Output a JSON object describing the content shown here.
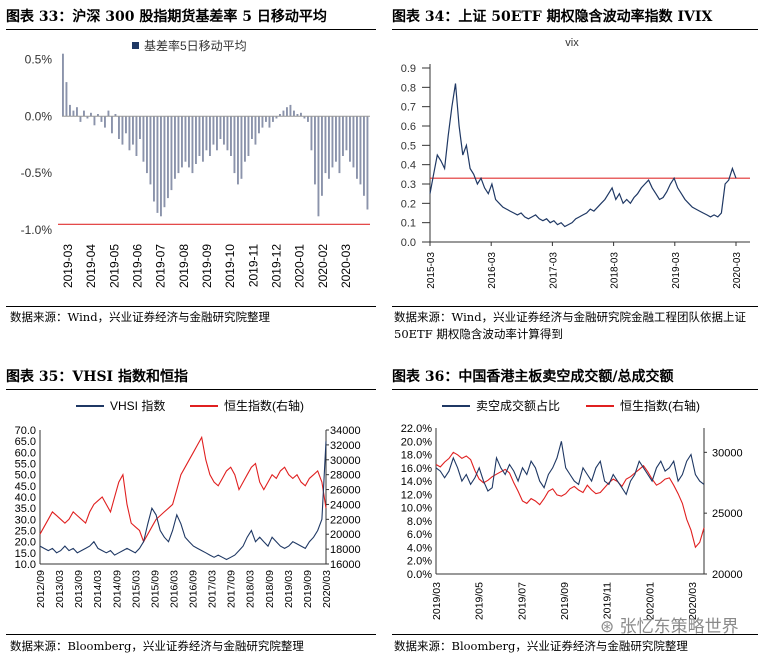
{
  "panels": [
    {
      "title": "图表 33：沪深 300 股指期货基差率 5 日移动平均",
      "source": "数据来源：Wind，兴业证券经济与金融研究院整理"
    },
    {
      "title": "图表 34：上证 50ETF 期权隐含波动率指数 IVIX",
      "source": "数据来源：Wind，兴业证券经济与金融研究院金融工程团队依据上证 50ETF 期权隐含波动率计算得到"
    },
    {
      "title": "图表 35：VHSI 指数和恒指",
      "source": "数据来源：Bloomberg，兴业证券经济与金融研究院整理"
    },
    {
      "title": "图表 36：中国香港主板卖空成交额/总成交额",
      "source": "数据来源：Bloomberg，兴业证券经济与金融研究院整理"
    }
  ],
  "watermark": "张忆东策略世界",
  "chart_data": [
    {
      "type": "bar",
      "legend": [
        "基差率5日移动平均"
      ],
      "yticks": [
        "0.5%",
        "0.0%",
        "-0.5%",
        "-1.0%"
      ],
      "ylim": [
        -1.0,
        0.6
      ],
      "xticks": [
        "2019-03",
        "2019-04",
        "2019-05",
        "2019-06",
        "2019-07",
        "2019-08",
        "2019-09",
        "2019-10",
        "2019-11",
        "2019-12",
        "2020-01",
        "2020-02",
        "2020-03"
      ],
      "reference_line": -0.95,
      "colors": {
        "bar": "#1f3864",
        "reference": "#e03030"
      },
      "series": [
        {
          "values": [
            0.55,
            0.3,
            0.1,
            0.05,
            0.08,
            -0.05,
            0.05,
            -0.02,
            0.03,
            -0.08,
            0.02,
            -0.05,
            -0.1,
            0.05,
            -0.15,
            0.02,
            -0.2,
            -0.25,
            -0.15,
            -0.3,
            -0.25,
            -0.35,
            -0.2,
            -0.4,
            -0.5,
            -0.6,
            -0.75,
            -0.85,
            -0.88,
            -0.8,
            -0.72,
            -0.65,
            -0.55,
            -0.5,
            -0.45,
            -0.4,
            -0.45,
            -0.5,
            -0.42,
            -0.35,
            -0.4,
            -0.3,
            -0.35,
            -0.25,
            -0.3,
            -0.2,
            -0.25,
            -0.3,
            -0.35,
            -0.5,
            -0.6,
            -0.55,
            -0.4,
            -0.35,
            -0.2,
            -0.25,
            -0.15,
            -0.1,
            -0.05,
            -0.1,
            -0.05,
            -0.02,
            0.02,
            0.05,
            0.08,
            0.1,
            0.05,
            0.02,
            0.03,
            -0.02,
            -0.05,
            -0.3,
            -0.6,
            -0.88,
            -0.7,
            -0.5,
            -0.55,
            -0.45,
            -0.4,
            -0.5,
            -0.35,
            -0.3,
            -0.4,
            -0.45,
            -0.55,
            -0.6,
            -0.7,
            -0.82
          ]
        }
      ]
    },
    {
      "type": "line",
      "title": "vix",
      "yticks": [
        "0.9",
        "0.8",
        "0.7",
        "0.6",
        "0.5",
        "0.4",
        "0.3",
        "0.2",
        "0.1",
        "0.0"
      ],
      "ylim": [
        0,
        0.9
      ],
      "xticks": [
        "2015-03",
        "2016-03",
        "2017-03",
        "2018-03",
        "2019-03",
        "2020-03"
      ],
      "reference_line": 0.33,
      "colors": {
        "line": "#1f3864",
        "reference": "#e03030"
      },
      "series": [
        {
          "values": [
            0.25,
            0.35,
            0.45,
            0.42,
            0.38,
            0.55,
            0.7,
            0.82,
            0.6,
            0.45,
            0.5,
            0.38,
            0.35,
            0.3,
            0.33,
            0.28,
            0.25,
            0.3,
            0.22,
            0.2,
            0.18,
            0.17,
            0.16,
            0.15,
            0.14,
            0.15,
            0.13,
            0.12,
            0.13,
            0.14,
            0.12,
            0.11,
            0.12,
            0.1,
            0.11,
            0.09,
            0.1,
            0.08,
            0.09,
            0.1,
            0.12,
            0.13,
            0.14,
            0.15,
            0.17,
            0.16,
            0.18,
            0.2,
            0.22,
            0.25,
            0.28,
            0.22,
            0.25,
            0.2,
            0.22,
            0.2,
            0.23,
            0.25,
            0.28,
            0.3,
            0.32,
            0.28,
            0.25,
            0.22,
            0.23,
            0.26,
            0.3,
            0.33,
            0.28,
            0.25,
            0.22,
            0.2,
            0.18,
            0.17,
            0.16,
            0.15,
            0.14,
            0.13,
            0.14,
            0.13,
            0.15,
            0.3,
            0.32,
            0.38,
            0.33
          ]
        }
      ]
    },
    {
      "type": "line",
      "legend": [
        "VHSI 指数",
        "恒生指数(右轴)"
      ],
      "yticks_left": [
        "70.0",
        "65.0",
        "60.0",
        "55.0",
        "50.0",
        "45.0",
        "40.0",
        "35.0",
        "30.0",
        "25.0",
        "20.0",
        "15.0",
        "10.0"
      ],
      "yticks_right": [
        "34000",
        "32000",
        "30000",
        "28000",
        "26000",
        "24000",
        "22000",
        "20000",
        "18000",
        "16000"
      ],
      "ylim_left": [
        10,
        70
      ],
      "ylim_right": [
        16000,
        34000
      ],
      "xticks": [
        "2012/09",
        "2013/03",
        "2013/09",
        "2014/03",
        "2014/09",
        "2015/03",
        "2015/09",
        "2016/03",
        "2016/09",
        "2017/03",
        "2017/09",
        "2018/03",
        "2018/09",
        "2019/03",
        "2019/09",
        "2020/03"
      ],
      "colors": {
        "VHSI": "#1f3864",
        "HSI": "#e02020"
      },
      "series": [
        {
          "name": "VHSI 指数",
          "values": [
            18,
            17,
            16,
            17,
            15,
            16,
            18,
            16,
            17,
            15,
            16,
            17,
            18,
            20,
            17,
            16,
            15,
            16,
            14,
            15,
            16,
            17,
            16,
            15,
            17,
            20,
            28,
            35,
            32,
            25,
            22,
            20,
            25,
            32,
            28,
            22,
            20,
            18,
            17,
            16,
            15,
            14,
            13,
            14,
            13,
            12,
            13,
            14,
            16,
            18,
            22,
            25,
            20,
            22,
            20,
            18,
            22,
            20,
            18,
            17,
            18,
            20,
            19,
            18,
            17,
            20,
            22,
            25,
            30,
            65
          ]
        },
        {
          "name": "恒生指数(右轴)",
          "values": [
            20000,
            21000,
            22000,
            23000,
            22500,
            22000,
            21500,
            22000,
            23000,
            22500,
            22000,
            21500,
            23000,
            24000,
            24500,
            25000,
            24000,
            23000,
            25000,
            27000,
            28000,
            24000,
            21500,
            21000,
            20500,
            19000,
            20000,
            21000,
            22000,
            22500,
            23000,
            23500,
            24000,
            26000,
            28000,
            29000,
            30000,
            31000,
            32000,
            33000,
            30000,
            28000,
            27000,
            26500,
            27500,
            28500,
            29000,
            28000,
            26000,
            27000,
            28000,
            29000,
            29500,
            27000,
            26000,
            27000,
            28000,
            27500,
            28500,
            29000,
            28000,
            27500,
            28000,
            27000,
            26500,
            27500,
            28000,
            28500,
            27000,
            23500
          ]
        }
      ]
    },
    {
      "type": "line",
      "legend": [
        "卖空成交额占比",
        "恒生指数(右轴)"
      ],
      "yticks_left": [
        "22.0%",
        "20.0%",
        "18.0%",
        "16.0%",
        "14.0%",
        "12.0%",
        "10.0%",
        "8.0%",
        "6.0%",
        "4.0%",
        "2.0%",
        "0.0%"
      ],
      "yticks_right": [
        "30000",
        "25000",
        "20000"
      ],
      "ylim_left": [
        0,
        22
      ],
      "ylim_right": [
        20000,
        32000
      ],
      "xticks": [
        "2019/03",
        "2019/05",
        "2019/07",
        "2019/09",
        "2019/11",
        "2020/01",
        "2020/03"
      ],
      "colors": {
        "short": "#1f3864",
        "HSI": "#e02020"
      },
      "series": [
        {
          "name": "卖空成交额占比",
          "values": [
            16,
            15.5,
            14.5,
            15.5,
            17.5,
            16,
            14,
            15,
            13.5,
            14.5,
            16,
            14,
            12.5,
            13,
            17.5,
            16,
            15,
            16.5,
            15.5,
            14,
            16,
            15,
            17,
            16,
            14,
            13,
            15,
            16,
            17.5,
            20,
            16,
            15,
            14,
            13.5,
            16,
            15,
            14,
            16,
            17,
            14,
            13.5,
            15,
            14,
            13,
            12,
            14,
            15,
            17,
            16,
            15,
            14,
            16,
            17,
            15.5,
            16,
            17,
            14,
            15,
            17,
            18,
            15,
            14,
            13.5
          ]
        },
        {
          "name": "恒生指数(右轴)",
          "values": [
            29000,
            28800,
            29200,
            29500,
            30000,
            29800,
            29500,
            29700,
            29400,
            28500,
            27800,
            27500,
            27700,
            28000,
            28200,
            28400,
            28600,
            28300,
            27500,
            26800,
            26000,
            25800,
            26200,
            26000,
            25700,
            26200,
            26800,
            27000,
            26500,
            26400,
            26600,
            27000,
            27200,
            26900,
            26700,
            27300,
            26900,
            26600,
            26700,
            27100,
            27500,
            27800,
            27600,
            27200,
            27800,
            28000,
            28300,
            28600,
            28900,
            28400,
            27800,
            27300,
            27500,
            27800,
            27900,
            27300,
            26600,
            25800,
            24500,
            23600,
            22200,
            22600,
            23800
          ]
        }
      ]
    }
  ]
}
